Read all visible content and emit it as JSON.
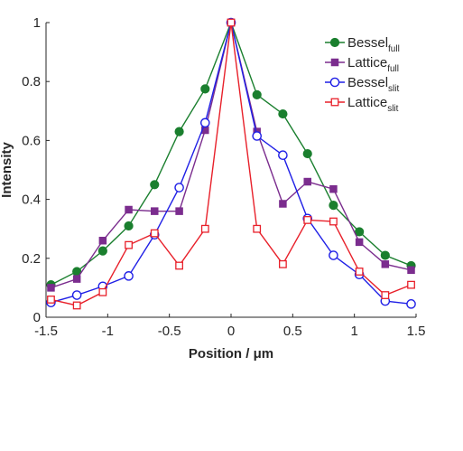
{
  "chart_data": {
    "type": "line",
    "xlabel": "Position / μm",
    "ylabel": "Intensity",
    "xlim": [
      -1.5,
      1.5
    ],
    "ylim": [
      0,
      1
    ],
    "xticks": [
      "-1.5",
      "-1",
      "-0.5",
      "0",
      "0.5",
      "1",
      "1.5"
    ],
    "xtick_values": [
      -1.5,
      -1,
      -0.5,
      0,
      0.5,
      1,
      1.5
    ],
    "yticks": [
      "0",
      "0.2",
      "0.4",
      "0.6",
      "0.8",
      "1"
    ],
    "ytick_values": [
      0,
      0.2,
      0.4,
      0.6,
      0.8,
      1
    ],
    "grid": false,
    "legend_position": "top-right",
    "x": [
      -1.46,
      -1.25,
      -1.04,
      -0.83,
      -0.62,
      -0.42,
      -0.21,
      0,
      0.21,
      0.42,
      0.62,
      0.83,
      1.04,
      1.25,
      1.46
    ],
    "series": [
      {
        "name": "Bessel",
        "name_sub": "full",
        "color": "#1a7f2e",
        "marker": "filled-circle",
        "values": [
          0.11,
          0.155,
          0.225,
          0.31,
          0.45,
          0.63,
          0.775,
          1.0,
          0.755,
          0.69,
          0.555,
          0.38,
          0.29,
          0.21,
          0.175
        ]
      },
      {
        "name": "Lattice",
        "name_sub": "full",
        "color": "#7b2d8e",
        "marker": "filled-square",
        "values": [
          0.1,
          0.13,
          0.26,
          0.365,
          0.36,
          0.36,
          0.635,
          1.0,
          0.63,
          0.385,
          0.46,
          0.435,
          0.255,
          0.18,
          0.16
        ]
      },
      {
        "name": "Bessel",
        "name_sub": "slit",
        "color": "#1f1fe6",
        "marker": "open-circle",
        "values": [
          0.05,
          0.075,
          0.105,
          0.14,
          0.28,
          0.44,
          0.66,
          1.0,
          0.615,
          0.55,
          0.335,
          0.21,
          0.145,
          0.055,
          0.045
        ]
      },
      {
        "name": "Lattice",
        "name_sub": "slit",
        "color": "#e8202a",
        "marker": "open-square",
        "values": [
          0.06,
          0.04,
          0.085,
          0.245,
          0.285,
          0.175,
          0.3,
          1.0,
          0.3,
          0.18,
          0.33,
          0.325,
          0.155,
          0.075,
          0.11
        ]
      }
    ]
  }
}
